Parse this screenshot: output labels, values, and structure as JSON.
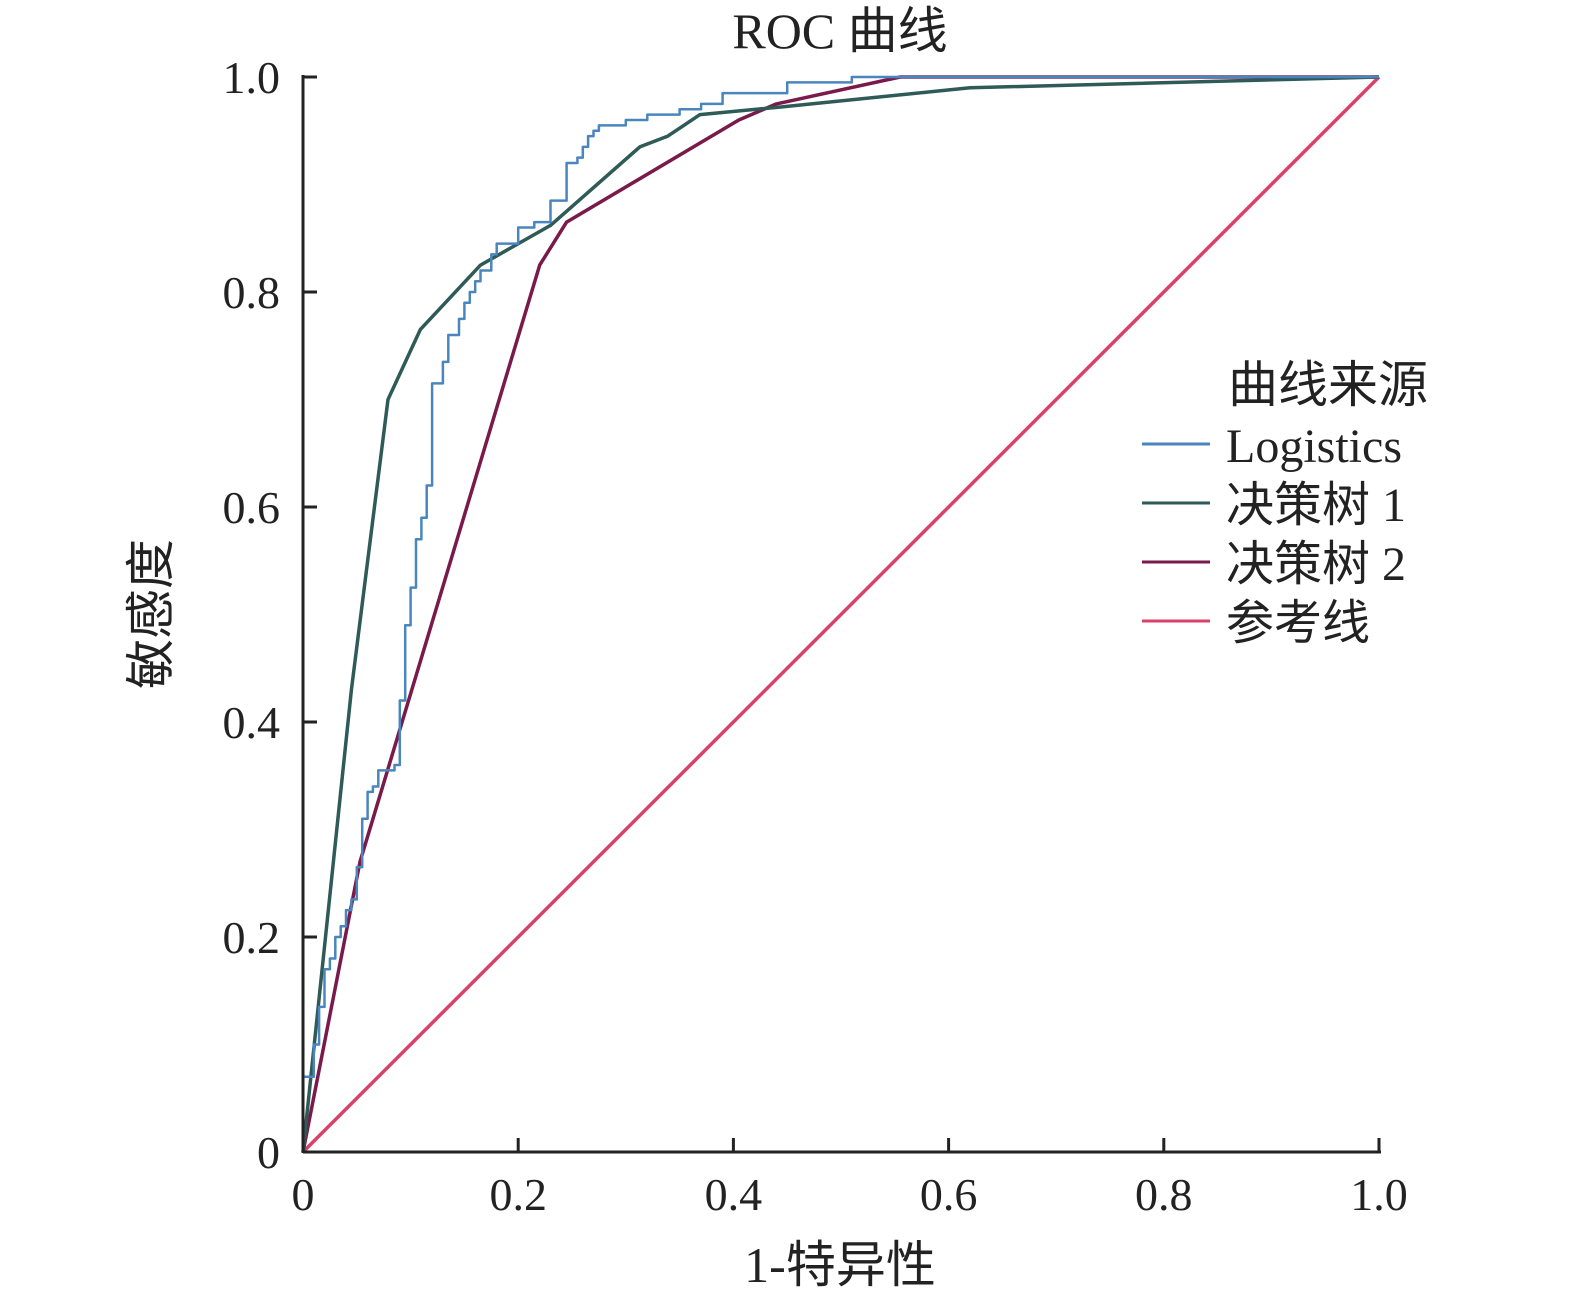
{
  "chart_data": {
    "type": "line",
    "title": "ROC 曲线",
    "xlabel": "1-特异性",
    "ylabel": "敏感度",
    "xlim": [
      0,
      1
    ],
    "ylim": [
      0,
      1
    ],
    "xticks": [
      "0",
      "0.2",
      "0.4",
      "0.6",
      "0.8",
      "1.0"
    ],
    "yticks": [
      "0",
      "0.2",
      "0.4",
      "0.6",
      "0.8",
      "1.0"
    ],
    "xtick_values": [
      0,
      0.2,
      0.4,
      0.6,
      0.8,
      1.0
    ],
    "ytick_values": [
      0,
      0.2,
      0.4,
      0.6,
      0.8,
      1.0
    ],
    "grid": false,
    "legend": {
      "title": "曲线来源",
      "placement": "right"
    },
    "series": [
      {
        "name": "Logistics",
        "color": "#4a86bd",
        "step": true,
        "x": [
          0,
          0,
          0.01,
          0.015,
          0.02,
          0.025,
          0.03,
          0.035,
          0.04,
          0.045,
          0.05,
          0.055,
          0.06,
          0.065,
          0.07,
          0.085,
          0.09,
          0.095,
          0.1,
          0.105,
          0.11,
          0.115,
          0.12,
          0.13,
          0.135,
          0.145,
          0.15,
          0.155,
          0.16,
          0.165,
          0.175,
          0.18,
          0.2,
          0.215,
          0.23,
          0.245,
          0.255,
          0.26,
          0.265,
          0.27,
          0.275,
          0.3,
          0.32,
          0.35,
          0.37,
          0.39,
          0.45,
          0.51,
          1.0
        ],
        "y": [
          0,
          0.07,
          0.1,
          0.135,
          0.17,
          0.18,
          0.2,
          0.21,
          0.225,
          0.235,
          0.265,
          0.31,
          0.335,
          0.34,
          0.355,
          0.36,
          0.42,
          0.49,
          0.525,
          0.57,
          0.59,
          0.62,
          0.715,
          0.735,
          0.76,
          0.775,
          0.79,
          0.8,
          0.81,
          0.82,
          0.835,
          0.845,
          0.86,
          0.865,
          0.885,
          0.92,
          0.925,
          0.935,
          0.945,
          0.95,
          0.955,
          0.96,
          0.965,
          0.97,
          0.975,
          0.985,
          0.995,
          1.0,
          1.0
        ]
      },
      {
        "name": "决策树 1",
        "color": "#2e5a57",
        "step": false,
        "x": [
          0,
          0.045,
          0.079,
          0.109,
          0.165,
          0.23,
          0.313,
          0.339,
          0.369,
          0.443,
          0.62,
          1.0
        ],
        "y": [
          0,
          0.43,
          0.7,
          0.765,
          0.825,
          0.862,
          0.935,
          0.945,
          0.965,
          0.972,
          0.99,
          1.0
        ]
      },
      {
        "name": "决策树 2",
        "color": "#7a1a4a",
        "step": false,
        "x": [
          0,
          0.053,
          0.22,
          0.245,
          0.405,
          0.44,
          0.555,
          1.0
        ],
        "y": [
          0,
          0.27,
          0.825,
          0.865,
          0.96,
          0.975,
          1.0,
          1.0
        ]
      },
      {
        "name": "参考线",
        "color": "#d9416a",
        "step": false,
        "x": [
          0,
          1.0
        ],
        "y": [
          0,
          1.0
        ]
      }
    ]
  }
}
